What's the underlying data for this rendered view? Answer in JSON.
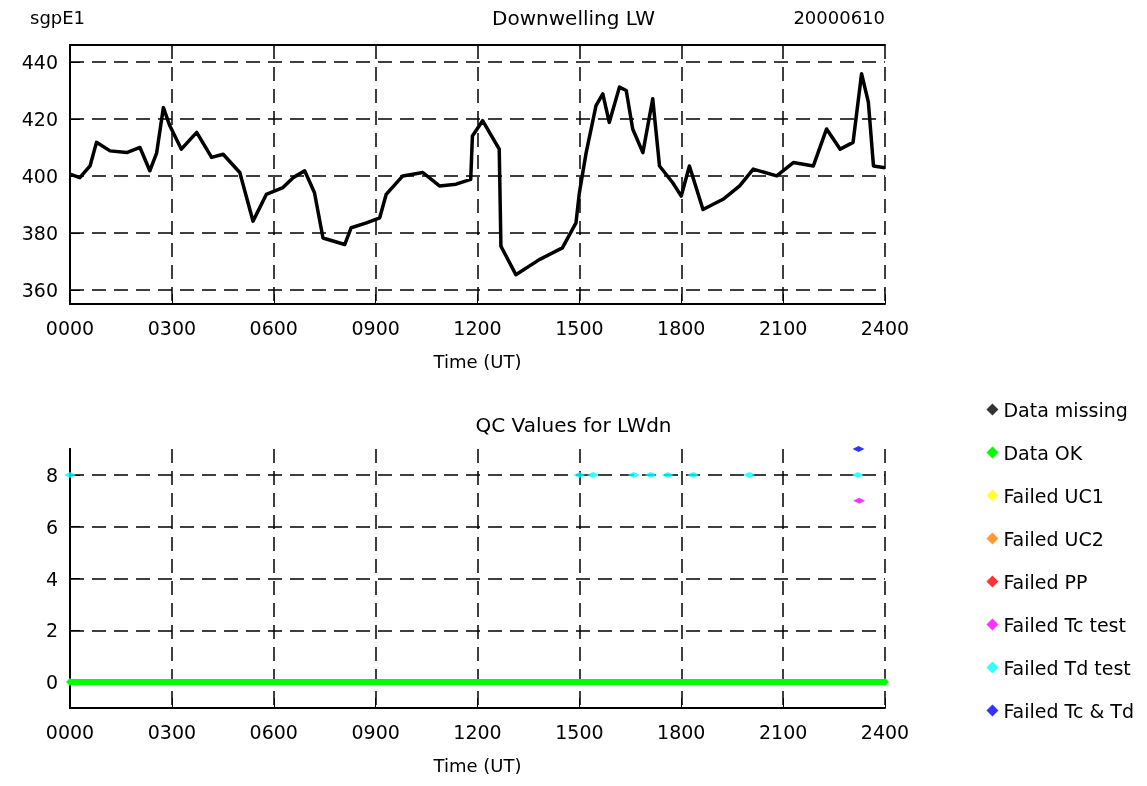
{
  "chart_data": [
    {
      "type": "line",
      "title": "Downwelling LW",
      "xlabel": "Time (UT)",
      "annotations": [
        "sgpE1",
        "20000610"
      ],
      "x": [
        0,
        29,
        59,
        78,
        118,
        167,
        206,
        235,
        255,
        275,
        294,
        328,
        373,
        417,
        451,
        500,
        539,
        578,
        627,
        657,
        691,
        720,
        745,
        809,
        828,
        873,
        912,
        931,
        980,
        1039,
        1088,
        1137,
        1180,
        1185,
        1215,
        1264,
        1269,
        1313,
        1382,
        1450,
        1490,
        1500,
        1520,
        1549,
        1569,
        1588,
        1618,
        1638,
        1657,
        1687,
        1716,
        1736,
        1775,
        1800,
        1824,
        1864,
        1923,
        1972,
        2012,
        2081,
        2130,
        2189,
        2228,
        2268,
        2306,
        2331,
        2351,
        2366,
        2400
      ],
      "series": [
        {
          "color": "#000000",
          "values": [
            400.6,
            399.4,
            403.5,
            411.8,
            408.8,
            408.2,
            410,
            401.8,
            408,
            424,
            417.6,
            409.4,
            415.3,
            406.5,
            407.6,
            401.2,
            384.1,
            393.5,
            395.9,
            399.4,
            401.8,
            394.1,
            378.2,
            375.9,
            381.8,
            383.5,
            385.3,
            393.5,
            400,
            401.2,
            396.5,
            397.1,
            398.8,
            414,
            419.4,
            409.4,
            375.3,
            365.3,
            370.6,
            374.7,
            383.5,
            394.1,
            408.2,
            424.7,
            428.8,
            418.8,
            431.2,
            430,
            416.5,
            408.2,
            427.1,
            403.5,
            397.6,
            392.9,
            403.5,
            388.2,
            391.8,
            396.5,
            402.4,
            400,
            404.7,
            403.5,
            416.5,
            409.4,
            411.8,
            435.9,
            425.9,
            403.5,
            402.9
          ]
        }
      ],
      "xlim": [
        0,
        2400
      ],
      "xticks": [
        {
          "value": 0,
          "label": "0000"
        },
        {
          "value": 300,
          "label": "0300"
        },
        {
          "value": 600,
          "label": "0600"
        },
        {
          "value": 900,
          "label": "0900"
        },
        1200,
        1500,
        1800,
        2100,
        2400
      ],
      "ylim": [
        355,
        446
      ],
      "yticks": [
        360,
        380,
        400,
        420,
        440
      ],
      "grid": true,
      "marker": "none"
    },
    {
      "type": "scatter",
      "title": "QC Values for LWdn",
      "xlabel": "Time (UT)",
      "legend": "right",
      "marker": "diamond",
      "series": [
        {
          "name": "Data missing",
          "color": "#000000"
        },
        {
          "name": "Data OK",
          "color": "#00ff00",
          "type": "line",
          "x": [
            0,
            2400
          ],
          "values": [
            0,
            0
          ]
        },
        {
          "name": "Failed UC1",
          "color": "#ffff00"
        },
        {
          "name": "Failed UC2",
          "color": "#ff8000"
        },
        {
          "name": "Failed PP",
          "color": "#ff0000"
        },
        {
          "name": "Failed Tc test",
          "color": "#ff00ff",
          "x": [
            2324
          ],
          "values": [
            7
          ]
        },
        {
          "name": "Failed Td test",
          "color": "#00ffff",
          "x": [
            0,
            1500,
            1540,
            1660,
            1710,
            1760,
            1835,
            2000,
            2320
          ],
          "values": [
            8,
            8,
            8,
            8,
            8,
            8,
            8,
            8,
            8
          ]
        },
        {
          "name": "Failed Tc & Td",
          "color": "#0000ff",
          "x": [
            2322
          ],
          "values": [
            9
          ]
        }
      ],
      "xlim": [
        0,
        2400
      ],
      "xticks": [
        {
          "value": 0,
          "label": "0000"
        },
        {
          "value": 300,
          "label": "0300"
        },
        {
          "value": 600,
          "label": "0600"
        },
        {
          "value": 900,
          "label": "0900"
        },
        1200,
        1500,
        1800,
        2100,
        2400
      ],
      "ylim": [
        -1,
        9
      ],
      "yticks": [
        0,
        2,
        4,
        6,
        8
      ],
      "grid": true
    }
  ]
}
